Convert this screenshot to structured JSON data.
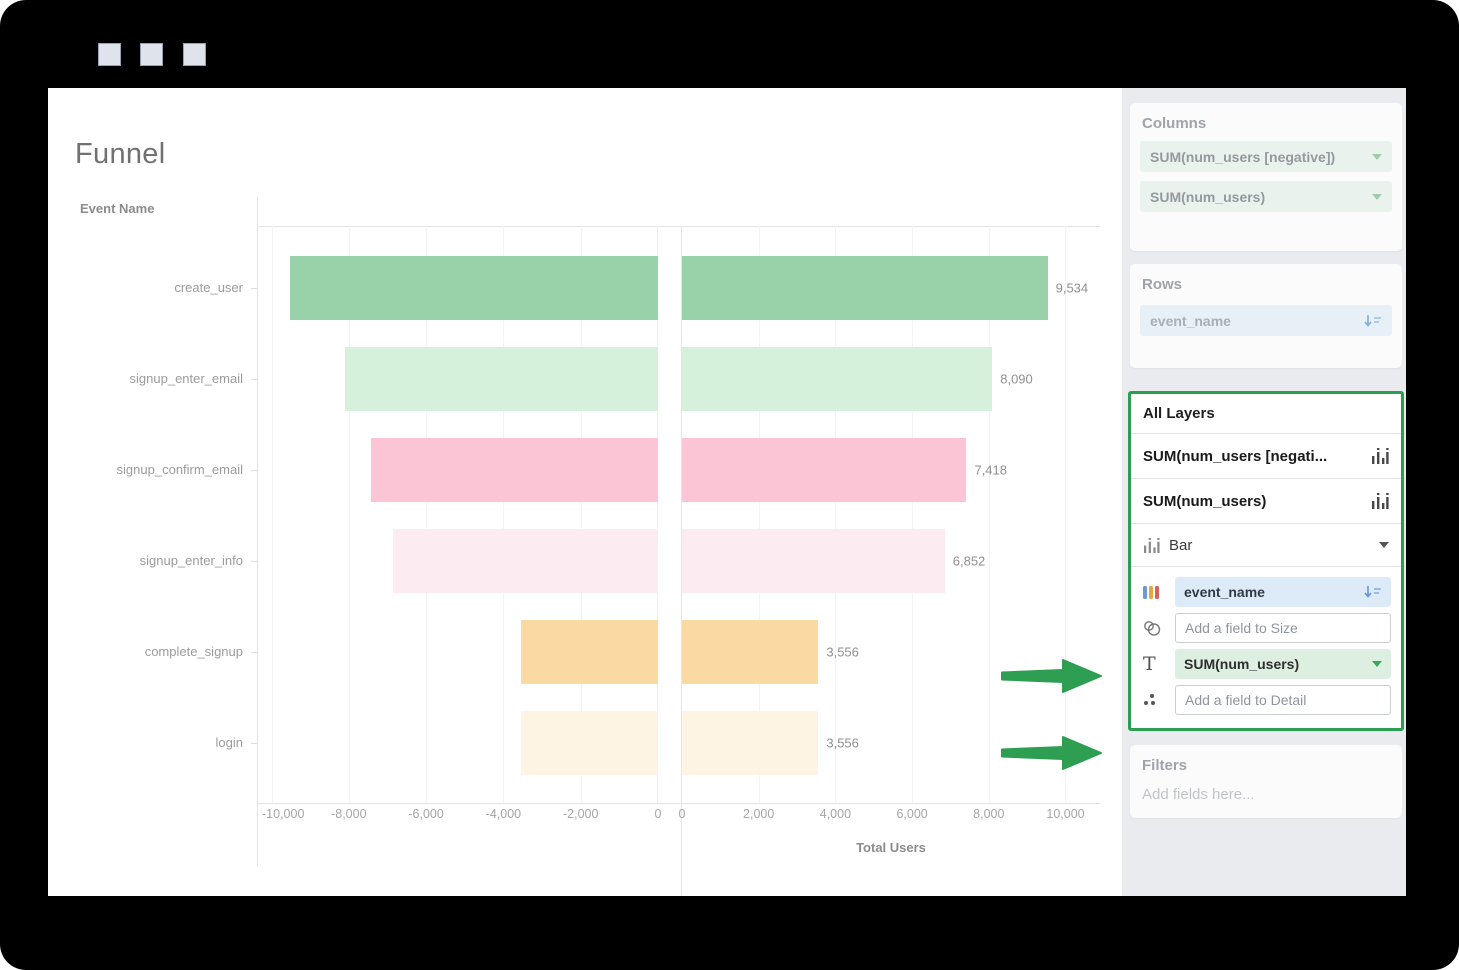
{
  "titlebar": {
    "buttons": [
      {
        "icon": "square"
      },
      {
        "icon": "square"
      },
      {
        "icon": "square"
      }
    ]
  },
  "sheet": {
    "title": "Funnel",
    "row_header": "Event Name"
  },
  "chart_data": {
    "type": "bar",
    "orientation": "horizontal",
    "mirrored": true,
    "title": "Funnel",
    "categories": [
      "create_user",
      "signup_enter_email",
      "signup_confirm_email",
      "signup_enter_info",
      "complete_signup",
      "login"
    ],
    "values": [
      9534,
      8090,
      7418,
      6852,
      3556,
      3556
    ],
    "value_labels": [
      "9,534",
      "8,090",
      "7,418",
      "6,852",
      "3,556",
      "3,556"
    ],
    "bar_colors": [
      "#99d1a8",
      "#d5f0db",
      "#fbc5d5",
      "#fcecf1",
      "#fbd9a2",
      "#fdf4e3"
    ],
    "xlabel": "Total Users",
    "row_axis_title": "Event Name",
    "left_axis": {
      "max": 10350,
      "ticks": [
        -10000,
        -8000,
        -6000,
        -4000,
        -2000,
        0
      ],
      "tick_labels": [
        "-10,000",
        "-8,000",
        "-6,000",
        "-4,000",
        "-2,000",
        "0"
      ]
    },
    "right_axis": {
      "max": 10900,
      "ticks": [
        0,
        2000,
        4000,
        6000,
        8000,
        10000
      ],
      "tick_labels": [
        "0",
        "2,000",
        "4,000",
        "6,000",
        "8,000",
        "10,000"
      ]
    },
    "grid": true,
    "legend": false,
    "value_labels_side": "right-pane-only"
  },
  "sidebar": {
    "columns_shelf": {
      "title": "Columns",
      "pills": [
        "SUM(num_users [negative])",
        "SUM(num_users)"
      ]
    },
    "rows_shelf": {
      "title": "Rows",
      "pills": [
        "event_name"
      ]
    },
    "all_layers": {
      "title": "All Layers",
      "layers": [
        {
          "label": "SUM(num_users [negati..."
        },
        {
          "label": "SUM(num_users)"
        }
      ],
      "mark_type": {
        "label": "Bar"
      },
      "marks": [
        {
          "slot": "color",
          "label": "event_name",
          "style": "pill-blue",
          "trailing": "sort-icon"
        },
        {
          "slot": "size",
          "label": "Add a field to Size",
          "style": "placeholder",
          "trailing": ""
        },
        {
          "slot": "text",
          "label": "SUM(num_users)",
          "style": "pill-green",
          "trailing": "caret"
        },
        {
          "slot": "detail",
          "label": "Add a field to Detail",
          "style": "placeholder",
          "trailing": ""
        }
      ]
    },
    "filters_shelf": {
      "title": "Filters",
      "placeholder": "Add fields here..."
    }
  },
  "colors": {
    "accent_green": "#2c9e52",
    "pill_green_bg": "#e9f4ec",
    "pill_blue_bg": "#e7f0fa",
    "sidebar_bg": "#e9ebee",
    "frame": "#000000"
  }
}
